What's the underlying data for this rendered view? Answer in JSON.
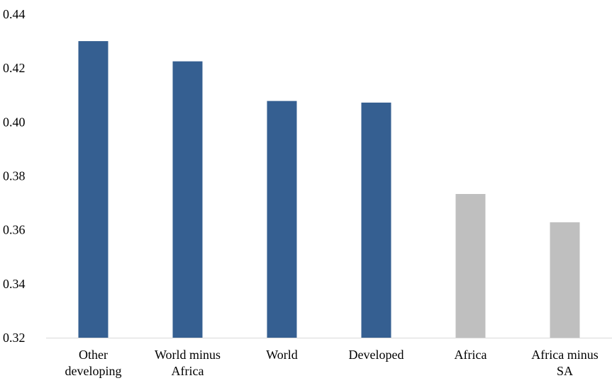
{
  "chart_data": {
    "type": "bar",
    "title": "",
    "xlabel": "",
    "ylabel": "",
    "ylim": [
      0.32,
      0.44
    ],
    "yticks": [
      "0.32",
      "0.34",
      "0.36",
      "0.38",
      "0.40",
      "0.42",
      "0.44"
    ],
    "grid": false,
    "legend": "none",
    "categories": [
      [
        "Other",
        "developing"
      ],
      [
        "World minus",
        "Africa"
      ],
      [
        "World"
      ],
      [
        "Developed"
      ],
      [
        "Africa"
      ],
      [
        "Africa minus",
        "SA"
      ]
    ],
    "values": [
      0.43,
      0.4225,
      0.4078,
      0.4072,
      0.3733,
      0.3628
    ],
    "bar_colors": [
      "#355f91",
      "#355f91",
      "#355f91",
      "#355f91",
      "#bfbfbf",
      "#bfbfbf"
    ],
    "axis_color": "#d9d9d9"
  }
}
